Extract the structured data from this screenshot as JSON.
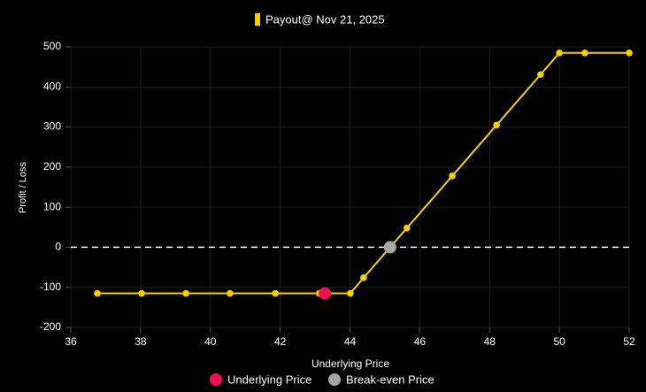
{
  "chart_data": {
    "type": "line",
    "x_label": "Underlying Price",
    "y_label": "Profit / Loss",
    "x": [
      36.76,
      38.03,
      39.3,
      40.56,
      41.86,
      43.12,
      44.01,
      44.39,
      45.63,
      46.93,
      48.2,
      49.46,
      50.0,
      50.73,
      52.0
    ],
    "series": [
      {
        "name": "Payout@ Nov 21, 2025",
        "color": "#f5d000",
        "values": [
          -115,
          -115,
          -115,
          -115,
          -115,
          -115,
          -115,
          -76,
          48,
          178,
          305,
          431,
          485,
          485,
          485
        ]
      }
    ],
    "markers": [
      {
        "name": "Underlying Price",
        "color": "#f0105a",
        "x": 43.28,
        "y": -115
      },
      {
        "name": "Break-even Price",
        "color": "#a6a6a6",
        "x": 45.15,
        "y": 0
      }
    ],
    "reference_line": {
      "y": 0,
      "style": "dashed",
      "color": "#ffffff"
    },
    "xlim": [
      36,
      52
    ],
    "xticks": [
      36,
      38,
      40,
      42,
      44,
      46,
      48,
      50,
      52
    ],
    "ylim": [
      -200,
      500
    ],
    "yticks": [
      -200,
      -100,
      0,
      100,
      200,
      300,
      400,
      500
    ],
    "grid": true
  }
}
